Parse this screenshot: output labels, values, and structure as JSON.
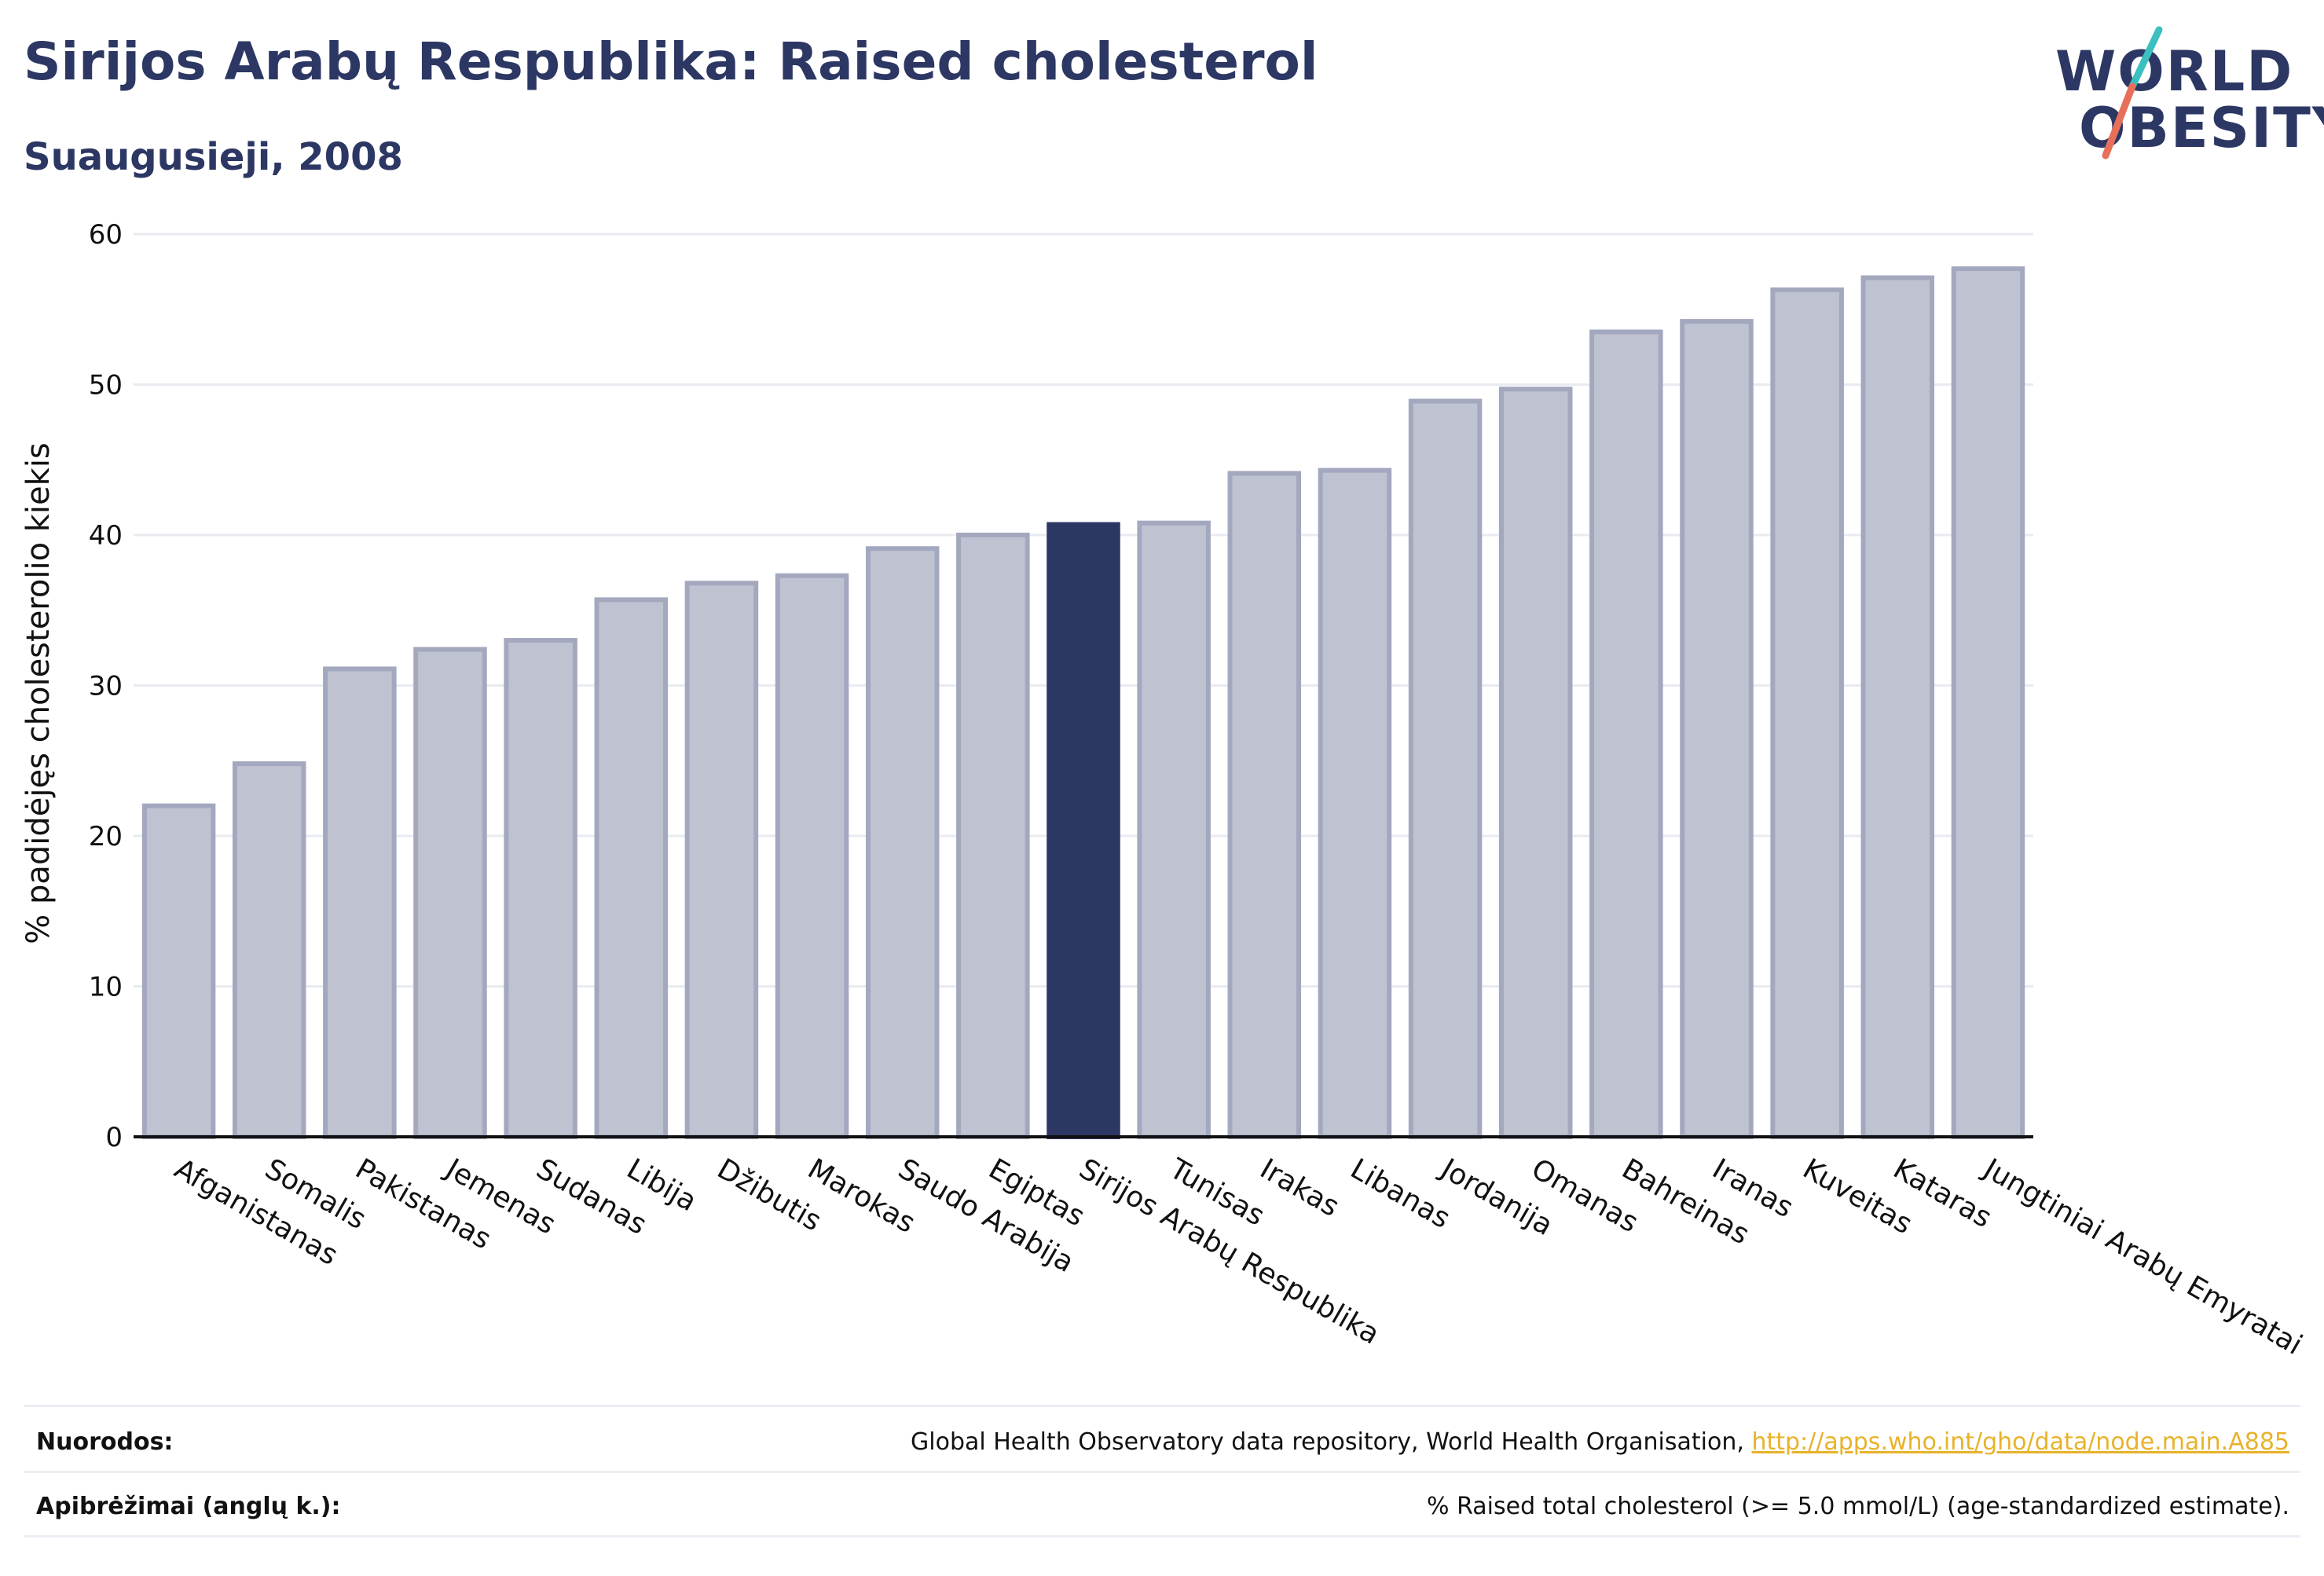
{
  "header": {
    "title": "Sirijos Arabų Respublika: Raised cholesterol",
    "subtitle": "Suaugusieji, 2008"
  },
  "logo": {
    "line1": "WORLD",
    "line2": "OBESITY",
    "accent_colors": [
      "#3bbfbf",
      "#e8705a"
    ]
  },
  "colors": {
    "bar_fill": "#bfc3d1",
    "bar_stroke": "#a3a8bf",
    "highlight": "#2c3763",
    "grid": "#e9ebf1",
    "link": "#e8b22a"
  },
  "chart_data": {
    "type": "bar",
    "ylabel": "% padidėjęs cholesterolio kiekis",
    "xlabel": "",
    "ylim": [
      0,
      60
    ],
    "yticks": [
      0,
      10,
      20,
      30,
      40,
      50,
      60
    ],
    "grid": true,
    "highlight_category": "Sirijos Arabų Respublika",
    "categories": [
      "Afganistanas",
      "Somalis",
      "Pakistanas",
      "Jemenas",
      "Sudanas",
      "Libija",
      "Džibutis",
      "Marokas",
      "Saudo Arabija",
      "Egiptas",
      "Sirijos Arabų Respublika",
      "Tunisas",
      "Irakas",
      "Libanas",
      "Jordanija",
      "Omanas",
      "Bahreinas",
      "Iranas",
      "Kuveitas",
      "Kataras",
      "Jungtiniai Arabų Emyratai"
    ],
    "values": [
      22.0,
      24.8,
      31.1,
      32.4,
      33.0,
      35.7,
      36.8,
      37.3,
      39.1,
      40.0,
      40.7,
      40.8,
      44.1,
      44.3,
      48.9,
      49.7,
      53.5,
      54.2,
      56.3,
      57.1,
      57.7
    ]
  },
  "footer": {
    "refs_label": "Nuorodos:",
    "refs_text": "Global Health Observatory data repository, World Health Organisation, ",
    "refs_link": "http://apps.who.int/gho/data/node.main.A885",
    "defs_label": "Apibrėžimai (anglų k.):",
    "defs_text": "% Raised total cholesterol (>= 5.0 mmol/L) (age-standardized estimate)."
  }
}
